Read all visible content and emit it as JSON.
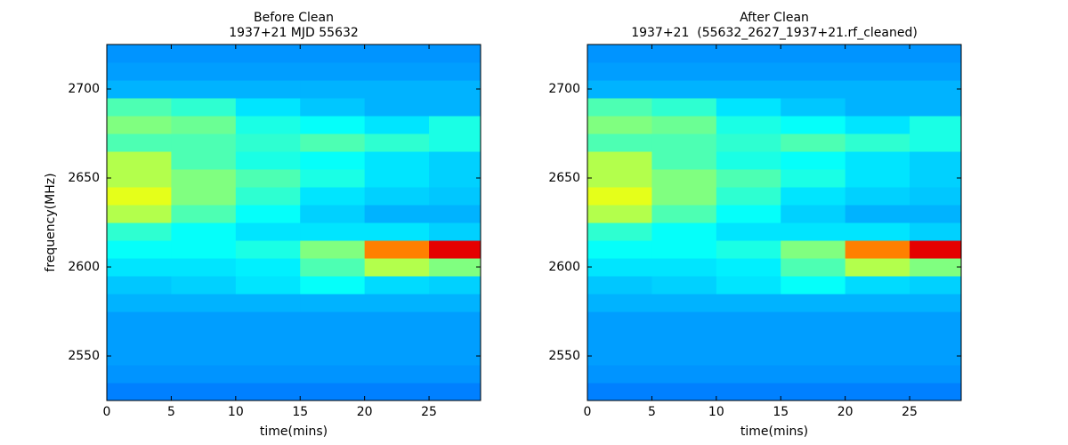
{
  "chart_data": [
    {
      "type": "heatmap",
      "title": "Before Clean",
      "subtitle": "1937+21 MJD 55632",
      "xlabel": "time(mins)",
      "ylabel": "frequency(MHz)",
      "colormap": "jet",
      "zlim": [
        0,
        1
      ],
      "xlim": [
        0,
        29
      ],
      "ylim": [
        2525,
        2725
      ],
      "xticks": [
        0,
        5,
        10,
        15,
        20,
        25
      ],
      "yticks": [
        2550,
        2600,
        2650,
        2700
      ],
      "x_edges": [
        0,
        5,
        10,
        15,
        20,
        25,
        29
      ],
      "y_edges": [
        2525,
        2535,
        2545,
        2555,
        2565,
        2575,
        2585,
        2595,
        2605,
        2615,
        2625,
        2635,
        2645,
        2655,
        2665,
        2675,
        2685,
        2695,
        2705,
        2715,
        2725
      ],
      "z": [
        [
          0.25,
          0.25,
          0.25,
          0.25,
          0.25,
          0.25
        ],
        [
          0.27,
          0.27,
          0.27,
          0.27,
          0.27,
          0.27
        ],
        [
          0.28,
          0.28,
          0.28,
          0.28,
          0.28,
          0.28
        ],
        [
          0.28,
          0.28,
          0.28,
          0.28,
          0.28,
          0.28
        ],
        [
          0.28,
          0.28,
          0.28,
          0.28,
          0.28,
          0.28
        ],
        [
          0.3,
          0.3,
          0.3,
          0.3,
          0.3,
          0.3
        ],
        [
          0.32,
          0.33,
          0.35,
          0.38,
          0.34,
          0.33
        ],
        [
          0.35,
          0.35,
          0.36,
          0.45,
          0.55,
          0.5
        ],
        [
          0.38,
          0.38,
          0.4,
          0.5,
          0.75,
          0.9
        ],
        [
          0.42,
          0.38,
          0.35,
          0.35,
          0.35,
          0.33
        ],
        [
          0.55,
          0.45,
          0.38,
          0.33,
          0.3,
          0.3
        ],
        [
          0.6,
          0.5,
          0.42,
          0.35,
          0.33,
          0.32
        ],
        [
          0.55,
          0.5,
          0.45,
          0.4,
          0.35,
          0.33
        ],
        [
          0.55,
          0.45,
          0.4,
          0.38,
          0.35,
          0.33
        ],
        [
          0.45,
          0.45,
          0.42,
          0.45,
          0.42,
          0.4
        ],
        [
          0.5,
          0.48,
          0.4,
          0.38,
          0.35,
          0.4
        ],
        [
          0.45,
          0.42,
          0.35,
          0.32,
          0.3,
          0.3
        ],
        [
          0.3,
          0.3,
          0.3,
          0.3,
          0.3,
          0.3
        ],
        [
          0.28,
          0.28,
          0.28,
          0.28,
          0.28,
          0.28
        ],
        [
          0.27,
          0.27,
          0.27,
          0.27,
          0.27,
          0.27
        ]
      ]
    },
    {
      "type": "heatmap",
      "title": "After Clean",
      "subtitle": "1937+21  (55632_2627_1937+21.rf_cleaned)",
      "xlabel": "time(mins)",
      "colormap": "jet",
      "zlim": [
        0,
        1
      ],
      "xlim": [
        0,
        29
      ],
      "ylim": [
        2525,
        2725
      ],
      "xticks": [
        0,
        5,
        10,
        15,
        20,
        25
      ],
      "yticks": [
        2550,
        2600,
        2650,
        2700
      ],
      "x_edges": [
        0,
        5,
        10,
        15,
        20,
        25,
        29
      ],
      "y_edges": [
        2525,
        2535,
        2545,
        2555,
        2565,
        2575,
        2585,
        2595,
        2605,
        2615,
        2625,
        2635,
        2645,
        2655,
        2665,
        2675,
        2685,
        2695,
        2705,
        2715,
        2725
      ],
      "z": [
        [
          0.25,
          0.25,
          0.25,
          0.25,
          0.25,
          0.25
        ],
        [
          0.27,
          0.27,
          0.27,
          0.27,
          0.27,
          0.27
        ],
        [
          0.28,
          0.28,
          0.28,
          0.28,
          0.28,
          0.28
        ],
        [
          0.28,
          0.28,
          0.28,
          0.28,
          0.28,
          0.28
        ],
        [
          0.28,
          0.28,
          0.28,
          0.28,
          0.28,
          0.28
        ],
        [
          0.3,
          0.3,
          0.3,
          0.3,
          0.3,
          0.3
        ],
        [
          0.32,
          0.33,
          0.35,
          0.38,
          0.34,
          0.33
        ],
        [
          0.35,
          0.35,
          0.36,
          0.45,
          0.55,
          0.5
        ],
        [
          0.38,
          0.38,
          0.4,
          0.5,
          0.75,
          0.9
        ],
        [
          0.42,
          0.38,
          0.35,
          0.35,
          0.35,
          0.33
        ],
        [
          0.55,
          0.45,
          0.38,
          0.33,
          0.3,
          0.3
        ],
        [
          0.6,
          0.5,
          0.42,
          0.35,
          0.33,
          0.32
        ],
        [
          0.55,
          0.5,
          0.45,
          0.4,
          0.35,
          0.33
        ],
        [
          0.55,
          0.45,
          0.4,
          0.38,
          0.35,
          0.33
        ],
        [
          0.45,
          0.45,
          0.42,
          0.45,
          0.42,
          0.4
        ],
        [
          0.5,
          0.48,
          0.4,
          0.38,
          0.35,
          0.4
        ],
        [
          0.45,
          0.42,
          0.35,
          0.32,
          0.3,
          0.3
        ],
        [
          0.3,
          0.3,
          0.3,
          0.3,
          0.3,
          0.3
        ],
        [
          0.28,
          0.28,
          0.28,
          0.28,
          0.28,
          0.28
        ],
        [
          0.27,
          0.27,
          0.27,
          0.27,
          0.27,
          0.27
        ]
      ]
    }
  ]
}
